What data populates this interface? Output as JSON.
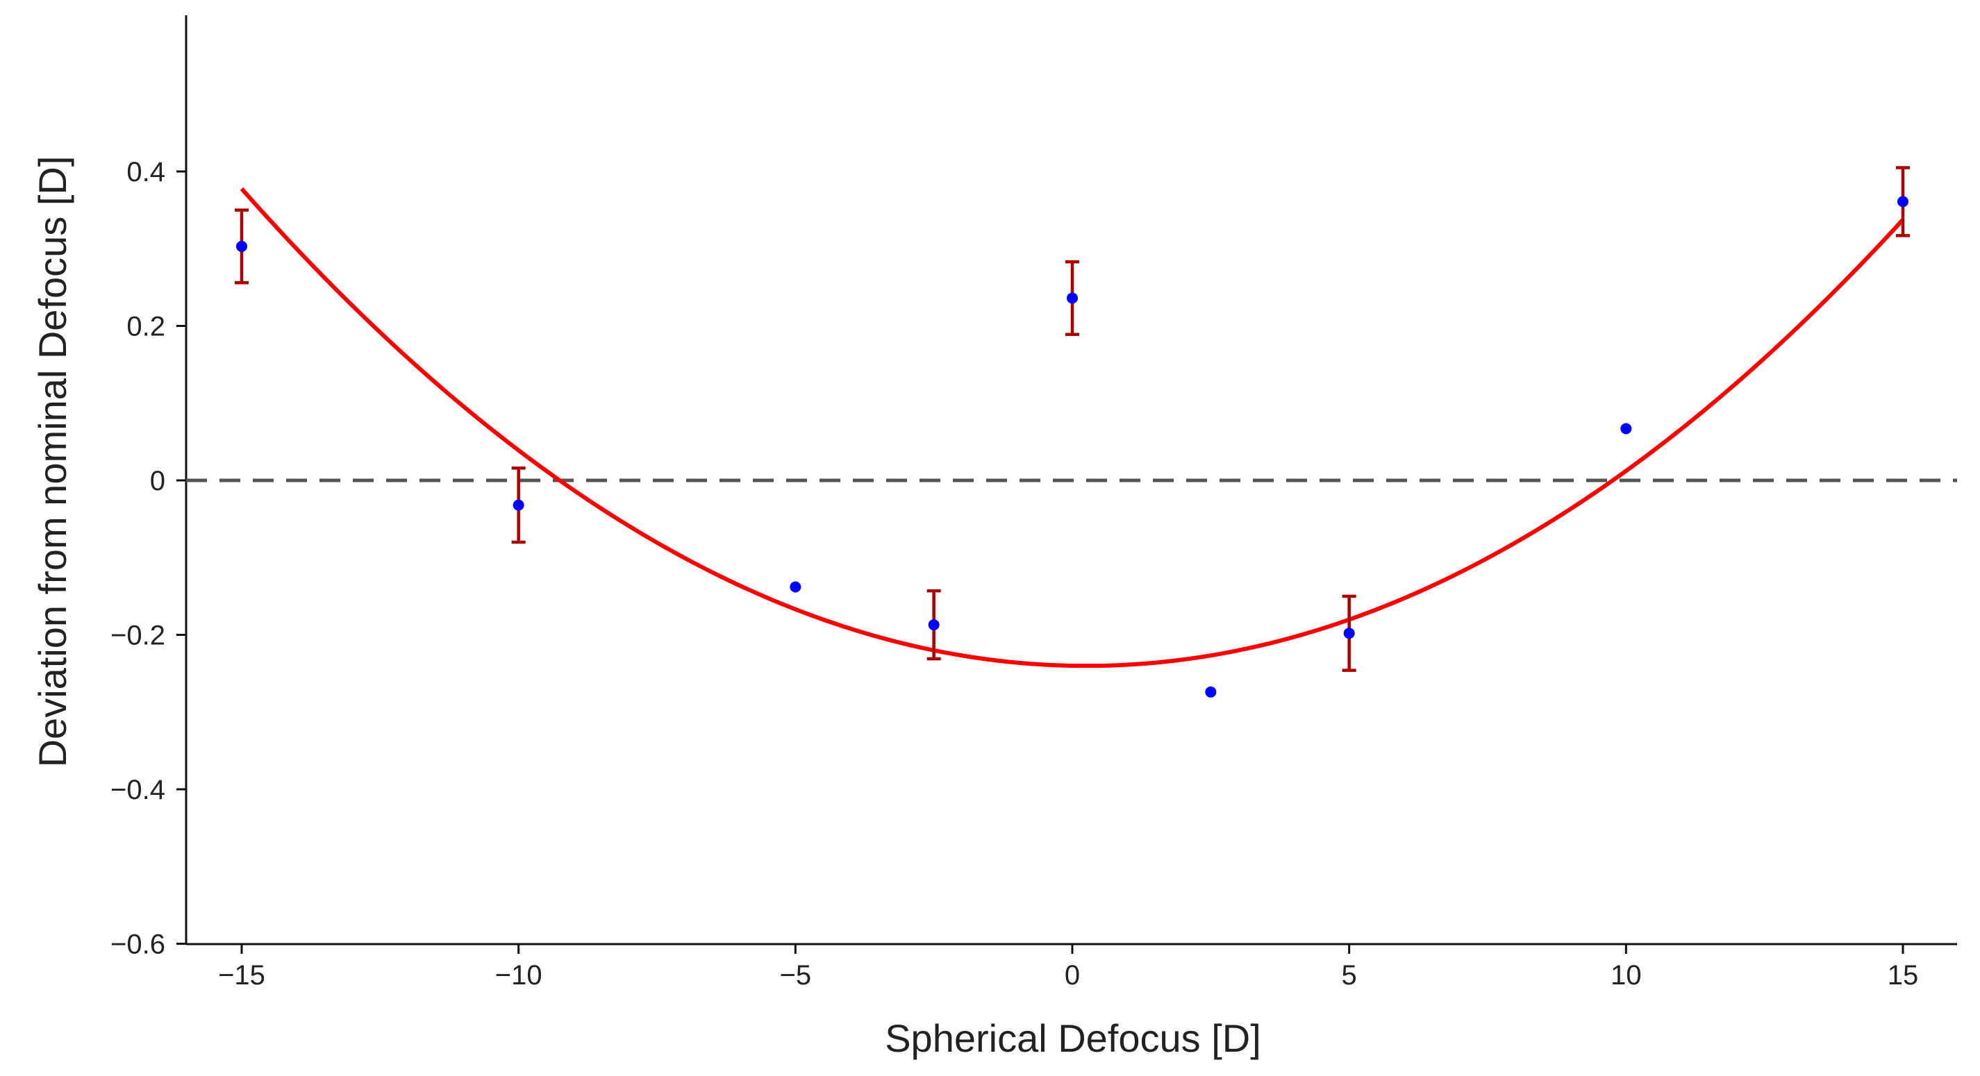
{
  "chart_data": {
    "type": "scatter",
    "title": "",
    "xlabel": "Spherical Defocus [D]",
    "ylabel": "Deviation from nominal Defocus [D]",
    "xlim": [
      -16,
      16
    ],
    "ylim": [
      -0.6,
      0.6
    ],
    "xticks": [
      -15,
      -10,
      -5,
      0,
      5,
      10,
      15
    ],
    "xtick_labels": [
      "−15",
      "−10",
      "−5",
      "0",
      "5",
      "10",
      "15"
    ],
    "yticks": [
      -0.6,
      -0.4,
      -0.2,
      0,
      0.2,
      0.4
    ],
    "ytick_labels": [
      "−0.6",
      "−0.4",
      "−0.2",
      "0",
      "0.2",
      "0.4"
    ],
    "reference_line": {
      "y": 0,
      "style": "dashed",
      "color": "#555555"
    },
    "series": [
      {
        "name": "measurements",
        "color": "#0000ff",
        "errorbar_color": "#aa0000",
        "points": [
          {
            "x": -15,
            "y": 0.303,
            "err": 0.047
          },
          {
            "x": -10,
            "y": -0.032,
            "err": 0.048
          },
          {
            "x": -5,
            "y": -0.138,
            "err": null
          },
          {
            "x": -2.5,
            "y": -0.187,
            "err": 0.044
          },
          {
            "x": 0,
            "y": 0.236,
            "err": 0.047
          },
          {
            "x": 2.5,
            "y": -0.274,
            "err": null
          },
          {
            "x": 5,
            "y": -0.198,
            "err": 0.048
          },
          {
            "x": 10,
            "y": 0.067,
            "err": null
          },
          {
            "x": 15,
            "y": 0.361,
            "err": 0.044
          }
        ]
      },
      {
        "name": "quadratic fit",
        "type": "line",
        "color": "#ff0000",
        "coefficients": {
          "a": 0.002656,
          "b": -0.001333,
          "c": -0.24
        },
        "x_range": [
          -15,
          15
        ]
      }
    ]
  }
}
